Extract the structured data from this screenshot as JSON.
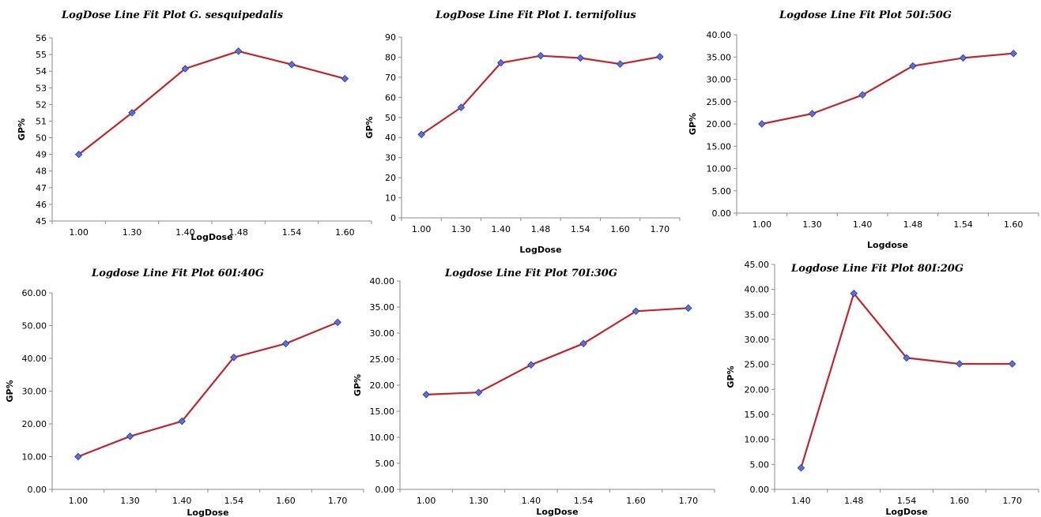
{
  "chart_data": [
    {
      "type": "line",
      "title": "LogDose Line Fit Plot G. sesquipedalis",
      "xlabel": "LogDose",
      "ylabel": "GP%",
      "categories": [
        "1.00",
        "1.30",
        "1.40",
        "1.48",
        "1.54",
        "1.60"
      ],
      "series": [
        {
          "values": [
            49.0,
            51.5,
            54.15,
            55.2,
            54.4,
            53.55
          ]
        }
      ],
      "ylim": [
        45,
        56
      ],
      "yticks": [
        "45",
        "46",
        "47",
        "48",
        "49",
        "50",
        "51",
        "52",
        "53",
        "54",
        "55",
        "56"
      ],
      "grid": false,
      "line_color": "#c0252e",
      "marker_color": "#5b6fd6"
    },
    {
      "type": "line",
      "title": "LogDose Line Fit Plot I. ternifolius",
      "xlabel": "LogDose",
      "ylabel": "GP%",
      "categories": [
        "1.00",
        "1.30",
        "1.40",
        "1.48",
        "1.54",
        "1.60",
        "1.70"
      ],
      "series": [
        {
          "values": [
            41.5,
            55.0,
            77.2,
            80.7,
            79.6,
            76.6,
            80.2
          ]
        }
      ],
      "ylim": [
        0,
        90
      ],
      "yticks": [
        "0",
        "10",
        "20",
        "30",
        "40",
        "50",
        "60",
        "70",
        "80",
        "90"
      ],
      "grid": false,
      "line_color": "#c0252e",
      "marker_color": "#5b6fd6"
    },
    {
      "type": "line",
      "title": "Logdose Line Fit Plot 50I:50G",
      "xlabel": "Logdose",
      "ylabel": "GP%",
      "categories": [
        "1.00",
        "1.30",
        "1.40",
        "1.48",
        "1.54",
        "1.60"
      ],
      "series": [
        {
          "values": [
            20.0,
            22.3,
            26.5,
            33.0,
            34.8,
            35.8
          ]
        }
      ],
      "ylim": [
        0,
        40
      ],
      "yticks": [
        "0.00",
        "5.00",
        "10.00",
        "15.00",
        "20.00",
        "25.00",
        "30.00",
        "35.00",
        "40.00"
      ],
      "grid": false,
      "line_color": "#c0252e",
      "marker_color": "#5b6fd6"
    },
    {
      "type": "line",
      "title": "Logdose Line Fit Plot 60I:40G",
      "xlabel": "LogDose",
      "ylabel": "GP%",
      "categories": [
        "1.00",
        "1.30",
        "1.40",
        "1.54",
        "1.60",
        "1.70"
      ],
      "series": [
        {
          "values": [
            10.0,
            16.2,
            20.8,
            40.3,
            44.5,
            51.0
          ]
        }
      ],
      "ylim": [
        0,
        60
      ],
      "yticks": [
        "0.00",
        "10.00",
        "20.00",
        "30.00",
        "40.00",
        "50.00",
        "60.00"
      ],
      "grid": false,
      "line_color": "#c0252e",
      "marker_color": "#5b6fd6"
    },
    {
      "type": "line",
      "title": "Logdose Line Fit Plot 70I:30G",
      "xlabel": "LogDose",
      "ylabel": "GP%",
      "categories": [
        "1.00",
        "1.30",
        "1.40",
        "1.54",
        "1.60",
        "1.70"
      ],
      "series": [
        {
          "values": [
            18.2,
            18.6,
            23.9,
            28.0,
            34.2,
            34.8
          ]
        }
      ],
      "ylim": [
        0,
        40
      ],
      "yticks": [
        "0.00",
        "5.00",
        "10.00",
        "15.00",
        "20.00",
        "25.00",
        "30.00",
        "35.00",
        "40.00"
      ],
      "grid": false,
      "line_color": "#c0252e",
      "marker_color": "#5b6fd6"
    },
    {
      "type": "line",
      "title": "Logdose Line Fit Plot 80I:20G",
      "xlabel": "LogDose",
      "ylabel": "GP%",
      "categories": [
        "1.40",
        "1.48",
        "1.54",
        "1.60",
        "1.70"
      ],
      "series": [
        {
          "values": [
            4.3,
            39.2,
            26.3,
            25.1,
            25.1
          ]
        }
      ],
      "ylim": [
        0,
        45
      ],
      "yticks": [
        "0.00",
        "5.00",
        "10.00",
        "15.00",
        "20.00",
        "25.00",
        "30.00",
        "35.00",
        "40.00",
        "45.00"
      ],
      "grid": false,
      "line_color": "#c0252e",
      "marker_color": "#5b6fd6"
    }
  ]
}
